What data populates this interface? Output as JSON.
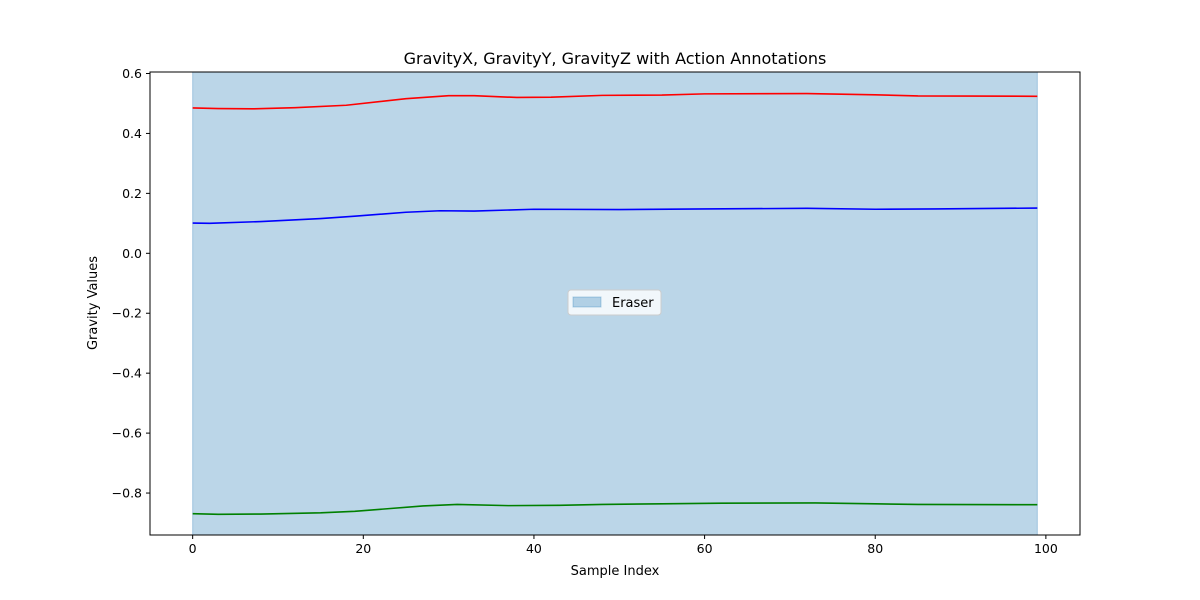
{
  "chart_data": {
    "type": "line",
    "title": "GravityX, GravityY, GravityZ with Action Annotations",
    "xlabel": "Sample Index",
    "ylabel": "Gravity Values",
    "xlim": [
      -5,
      104
    ],
    "ylim": [
      -0.94,
      0.605
    ],
    "xticks": [
      0,
      20,
      40,
      60,
      80,
      100
    ],
    "yticks": [
      0.6,
      0.4,
      0.2,
      0.0,
      -0.2,
      -0.4,
      -0.6,
      -0.8
    ],
    "ytick_labels": [
      "0.6",
      "0.4",
      "0.2",
      "0.0",
      "−0.2",
      "−0.4",
      "−0.6",
      "−0.8"
    ],
    "grid": false,
    "legend": {
      "placement": "center",
      "entries": [
        "Eraser"
      ]
    },
    "annotations": [
      {
        "label": "Eraser",
        "x_start": 0,
        "x_end": 99,
        "color": "#1f77b4",
        "alpha": 0.3
      }
    ],
    "series": [
      {
        "color": "#ff0000",
        "x": [
          0,
          3,
          7,
          12,
          18,
          25,
          30,
          33,
          38,
          42,
          48,
          55,
          60,
          72,
          80,
          85,
          99
        ],
        "y": [
          0.485,
          0.483,
          0.482,
          0.486,
          0.494,
          0.516,
          0.526,
          0.526,
          0.52,
          0.521,
          0.527,
          0.528,
          0.532,
          0.533,
          0.529,
          0.525,
          0.524
        ]
      },
      {
        "color": "#0000ff",
        "x": [
          0,
          2,
          8,
          15,
          19,
          25,
          29,
          33,
          40,
          50,
          60,
          72,
          80,
          87,
          99
        ],
        "y": [
          0.101,
          0.1,
          0.106,
          0.116,
          0.124,
          0.137,
          0.142,
          0.141,
          0.147,
          0.146,
          0.148,
          0.15,
          0.147,
          0.148,
          0.151
        ]
      },
      {
        "color": "#008000",
        "x": [
          0,
          3,
          8,
          15,
          19,
          23,
          27,
          31,
          37,
          43,
          48,
          55,
          62,
          73,
          80,
          85,
          99
        ],
        "y": [
          -0.869,
          -0.871,
          -0.87,
          -0.866,
          -0.861,
          -0.852,
          -0.843,
          -0.838,
          -0.842,
          -0.841,
          -0.838,
          -0.836,
          -0.834,
          -0.833,
          -0.836,
          -0.838,
          -0.839
        ]
      }
    ]
  }
}
